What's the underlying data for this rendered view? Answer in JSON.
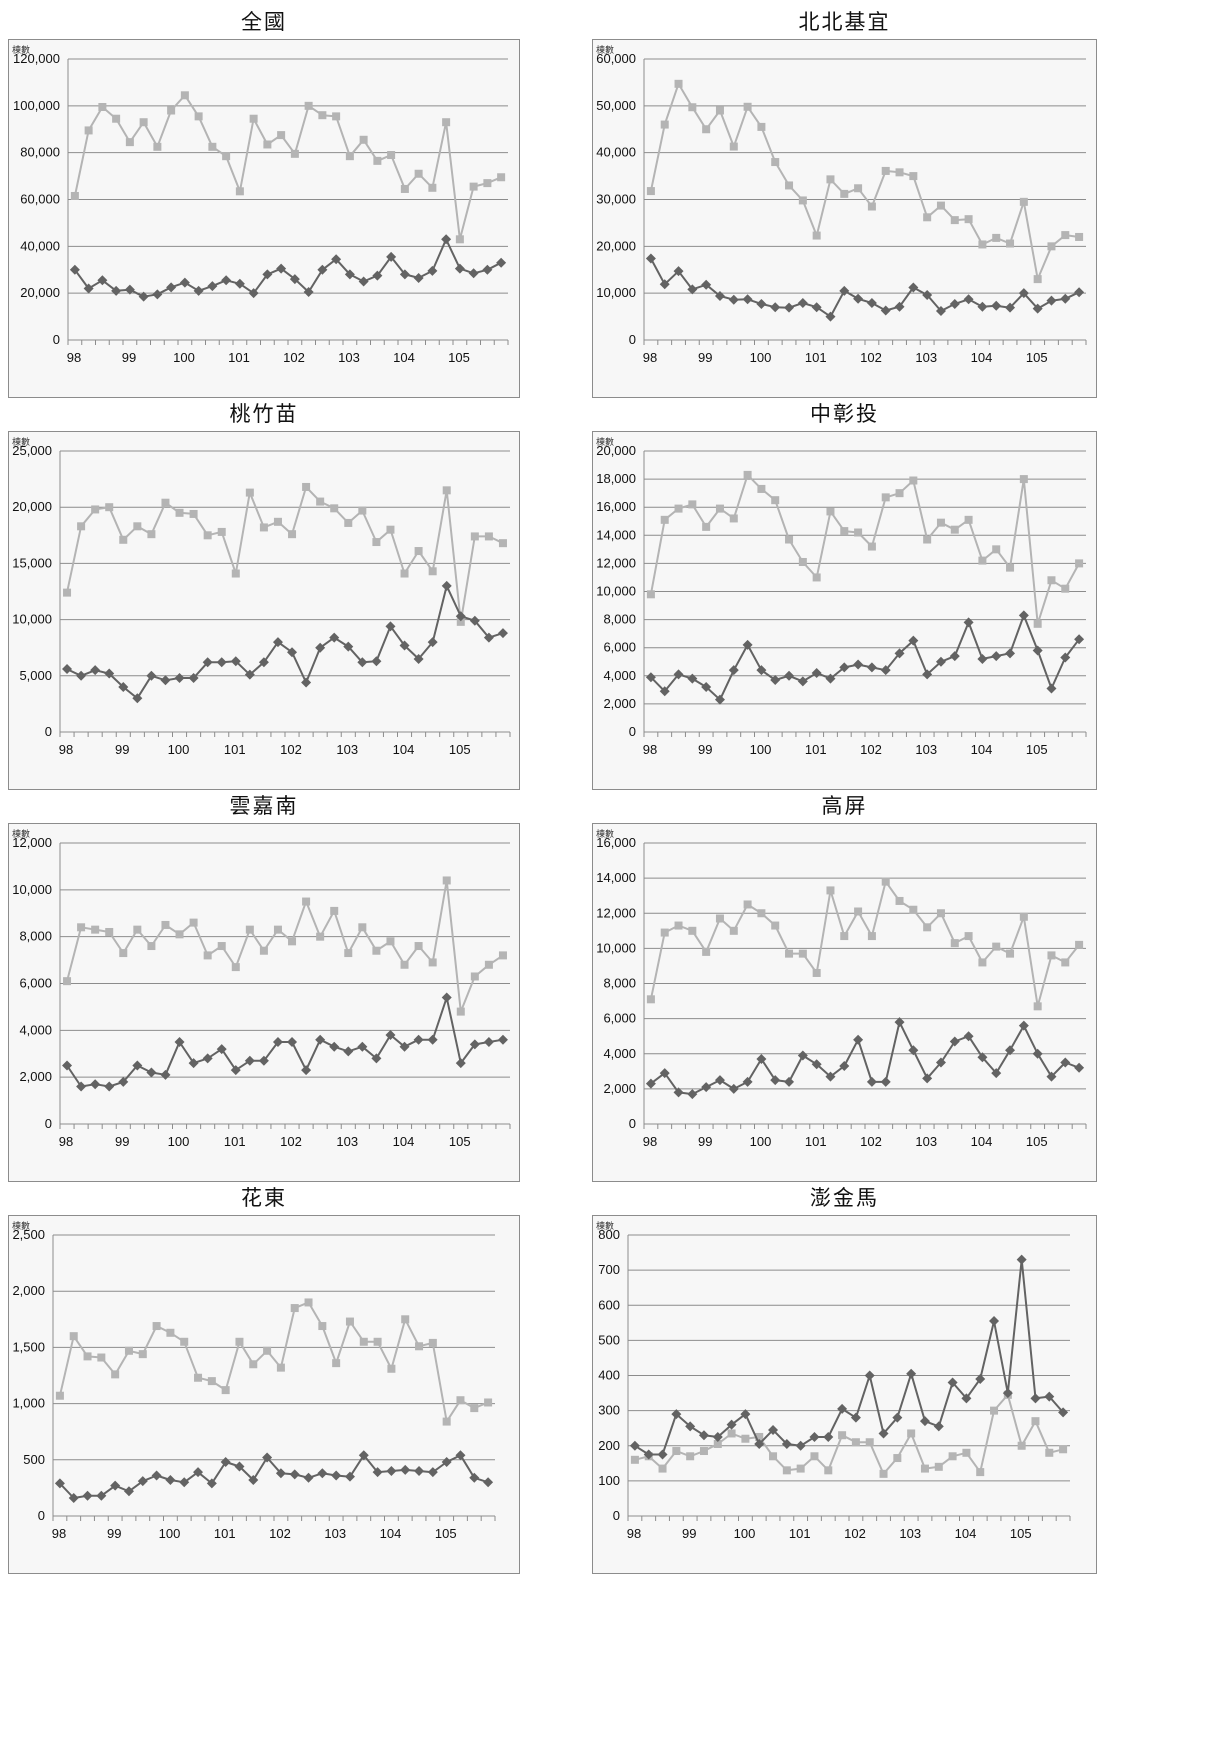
{
  "chart_data": [
    {
      "type": "line",
      "title": "全國",
      "ylabel": "棟數",
      "ylim": [
        0,
        120000
      ],
      "yticks": [
        0,
        20000,
        40000,
        60000,
        80000,
        100000,
        120000
      ],
      "ytick_labels": [
        "0",
        "20,000",
        "40,000",
        "60,000",
        "80,000",
        "100,000",
        "120,000"
      ],
      "x_labels": [
        "98",
        "99",
        "100",
        "101",
        "102",
        "103",
        "104",
        "105"
      ],
      "series": [
        {
          "style": "light-square",
          "values": [
            61500,
            89500,
            99500,
            94500,
            84500,
            93000,
            82500,
            98000,
            104500,
            95500,
            82500,
            78500,
            63500,
            94500,
            83500,
            87500,
            79500,
            100000,
            96000,
            95500,
            78500,
            85500,
            76500,
            79000,
            64500,
            71000,
            65000,
            93000,
            43000,
            65500,
            67000,
            69500
          ]
        },
        {
          "style": "dark-diamond",
          "values": [
            30000,
            22000,
            25500,
            21000,
            21500,
            18500,
            19500,
            22500,
            24500,
            21000,
            23000,
            25500,
            24000,
            20000,
            28000,
            30500,
            26000,
            20500,
            30000,
            34500,
            28000,
            25000,
            27500,
            35500,
            28000,
            26500,
            29500,
            43000,
            30500,
            28500,
            30000,
            33000
          ]
        }
      ]
    },
    {
      "type": "line",
      "title": "北北基宜",
      "ylabel": "棟數",
      "ylim": [
        0,
        60000
      ],
      "yticks": [
        0,
        10000,
        20000,
        30000,
        40000,
        50000,
        60000
      ],
      "ytick_labels": [
        "0",
        "10,000",
        "20,000",
        "30,000",
        "40,000",
        "50,000",
        "60,000"
      ],
      "x_labels": [
        "98",
        "99",
        "100",
        "101",
        "102",
        "103",
        "104",
        "105"
      ],
      "series": [
        {
          "style": "light-square",
          "values": [
            31800,
            46000,
            54700,
            49700,
            45000,
            49000,
            41300,
            49800,
            45500,
            38000,
            33000,
            29800,
            22300,
            34300,
            31200,
            32400,
            28500,
            36100,
            35800,
            35000,
            26200,
            28700,
            25600,
            25800,
            20400,
            21800,
            20600,
            29500,
            13000,
            20000,
            22400,
            22000
          ]
        },
        {
          "style": "dark-diamond",
          "values": [
            17400,
            11900,
            14700,
            10800,
            11800,
            9400,
            8600,
            8700,
            7700,
            7000,
            6900,
            7900,
            7000,
            5000,
            10500,
            8800,
            7900,
            6300,
            7100,
            11200,
            9600,
            6200,
            7700,
            8700,
            7100,
            7300,
            6900,
            10000,
            6700,
            8400,
            8800,
            10200
          ]
        }
      ]
    },
    {
      "type": "line",
      "title": "桃竹苗",
      "ylabel": "棟數",
      "ylim": [
        0,
        25000
      ],
      "yticks": [
        0,
        5000,
        10000,
        15000,
        20000,
        25000
      ],
      "ytick_labels": [
        "0",
        "5,000",
        "10,000",
        "15,000",
        "20,000",
        "25,000"
      ],
      "x_labels": [
        "98",
        "99",
        "100",
        "101",
        "102",
        "103",
        "104",
        "105"
      ],
      "series": [
        {
          "style": "light-square",
          "values": [
            12400,
            18300,
            19800,
            20000,
            17100,
            18300,
            17600,
            20400,
            19500,
            19400,
            17500,
            17800,
            14100,
            21300,
            18200,
            18700,
            17600,
            21800,
            20500,
            19900,
            18600,
            19700,
            16900,
            18000,
            14100,
            16100,
            14300,
            21500,
            9800,
            17400,
            17400,
            16800
          ]
        },
        {
          "style": "dark-diamond",
          "values": [
            5600,
            5000,
            5500,
            5200,
            4000,
            3000,
            5000,
            4600,
            4800,
            4800,
            6200,
            6200,
            6300,
            5100,
            6200,
            8000,
            7100,
            4400,
            7500,
            8400,
            7600,
            6200,
            6300,
            9400,
            7700,
            6500,
            8000,
            13000,
            10300,
            9900,
            8400,
            8800
          ]
        }
      ]
    },
    {
      "type": "line",
      "title": "中彰投",
      "ylabel": "棟數",
      "ylim": [
        0,
        20000
      ],
      "yticks": [
        0,
        2000,
        4000,
        6000,
        8000,
        10000,
        12000,
        14000,
        16000,
        18000,
        20000
      ],
      "ytick_labels": [
        "0",
        "2,000",
        "4,000",
        "6,000",
        "8,000",
        "10,000",
        "12,000",
        "14,000",
        "16,000",
        "18,000",
        "20,000"
      ],
      "x_labels": [
        "98",
        "99",
        "100",
        "101",
        "102",
        "103",
        "104",
        "105"
      ],
      "series": [
        {
          "style": "light-square",
          "values": [
            9800,
            15100,
            15900,
            16200,
            14600,
            15900,
            15200,
            18300,
            17300,
            16500,
            13700,
            12100,
            11000,
            15700,
            14300,
            14200,
            13200,
            16700,
            17000,
            17900,
            13700,
            14900,
            14400,
            15100,
            12200,
            13000,
            11700,
            18000,
            7700,
            10800,
            10200,
            12000
          ]
        },
        {
          "style": "dark-diamond",
          "values": [
            3900,
            2900,
            4100,
            3800,
            3200,
            2300,
            4400,
            6200,
            4400,
            3700,
            4000,
            3600,
            4200,
            3800,
            4600,
            4800,
            4600,
            4400,
            5600,
            6500,
            4100,
            5000,
            5400,
            7800,
            5200,
            5400,
            5600,
            8300,
            5800,
            3100,
            5300,
            6600
          ]
        }
      ]
    },
    {
      "type": "line",
      "title": "雲嘉南",
      "ylabel": "棟數",
      "ylim": [
        0,
        12000
      ],
      "yticks": [
        0,
        2000,
        4000,
        6000,
        8000,
        10000,
        12000
      ],
      "ytick_labels": [
        "0",
        "2,000",
        "4,000",
        "6,000",
        "8,000",
        "10,000",
        "12,000"
      ],
      "x_labels": [
        "98",
        "99",
        "100",
        "101",
        "102",
        "103",
        "104",
        "105"
      ],
      "series": [
        {
          "style": "light-square",
          "values": [
            6100,
            8400,
            8300,
            8200,
            7300,
            8300,
            7600,
            8500,
            8100,
            8600,
            7200,
            7600,
            6700,
            8300,
            7400,
            8300,
            7800,
            9500,
            8000,
            9100,
            7300,
            8400,
            7400,
            7800,
            6800,
            7600,
            6900,
            10400,
            4800,
            6300,
            6800,
            7200
          ]
        },
        {
          "style": "dark-diamond",
          "values": [
            2500,
            1600,
            1700,
            1600,
            1800,
            2500,
            2200,
            2100,
            3500,
            2600,
            2800,
            3200,
            2300,
            2700,
            2700,
            3500,
            3500,
            2300,
            3600,
            3300,
            3100,
            3300,
            2800,
            3800,
            3300,
            3600,
            3600,
            5400,
            2600,
            3400,
            3500,
            3600
          ]
        }
      ]
    },
    {
      "type": "line",
      "title": "高屏",
      "ylabel": "棟數",
      "ylim": [
        0,
        16000
      ],
      "yticks": [
        0,
        2000,
        4000,
        6000,
        8000,
        10000,
        12000,
        14000,
        16000
      ],
      "ytick_labels": [
        "0",
        "2,000",
        "4,000",
        "6,000",
        "8,000",
        "10,000",
        "12,000",
        "14,000",
        "16,000"
      ],
      "x_labels": [
        "98",
        "99",
        "100",
        "101",
        "102",
        "103",
        "104",
        "105"
      ],
      "series": [
        {
          "style": "light-square",
          "values": [
            7100,
            10900,
            11300,
            11000,
            9800,
            11700,
            11000,
            12500,
            12000,
            11300,
            9700,
            9700,
            8600,
            13300,
            10700,
            12100,
            10700,
            13800,
            12700,
            12200,
            11200,
            12000,
            10300,
            10700,
            9200,
            10100,
            9700,
            11800,
            6700,
            9600,
            9200,
            10200
          ]
        },
        {
          "style": "dark-diamond",
          "values": [
            2300,
            2900,
            1800,
            1700,
            2100,
            2500,
            2000,
            2400,
            3700,
            2500,
            2400,
            3900,
            3400,
            2700,
            3300,
            4800,
            2400,
            2400,
            5800,
            4200,
            2600,
            3500,
            4700,
            5000,
            3800,
            2900,
            4200,
            5600,
            4000,
            2700,
            3500,
            3200
          ]
        }
      ]
    },
    {
      "type": "line",
      "title": "花東",
      "ylabel": "棟數",
      "ylim": [
        0,
        2500
      ],
      "yticks": [
        0,
        500,
        1000,
        1500,
        2000,
        2500
      ],
      "ytick_labels": [
        "0",
        "500",
        "1,000",
        "1,500",
        "2,000",
        "2,500"
      ],
      "x_labels": [
        "98",
        "99",
        "100",
        "101",
        "102",
        "103",
        "104",
        "105"
      ],
      "series": [
        {
          "style": "light-square",
          "values": [
            1070,
            1600,
            1420,
            1410,
            1260,
            1470,
            1440,
            1690,
            1630,
            1550,
            1230,
            1200,
            1120,
            1550,
            1350,
            1470,
            1320,
            1850,
            1900,
            1690,
            1360,
            1730,
            1550,
            1550,
            1310,
            1750,
            1510,
            1540,
            840,
            1030,
            960,
            1010
          ]
        },
        {
          "style": "dark-diamond",
          "values": [
            290,
            160,
            180,
            180,
            270,
            220,
            310,
            360,
            320,
            300,
            390,
            290,
            480,
            440,
            320,
            520,
            380,
            370,
            340,
            380,
            360,
            350,
            540,
            390,
            400,
            410,
            400,
            390,
            480,
            540,
            340,
            300
          ]
        }
      ]
    },
    {
      "type": "line",
      "title": "澎金馬",
      "ylabel": "棟數",
      "ylim": [
        0,
        800
      ],
      "yticks": [
        0,
        100,
        200,
        300,
        400,
        500,
        600,
        700,
        800
      ],
      "ytick_labels": [
        "0",
        "100",
        "200",
        "300",
        "400",
        "500",
        "600",
        "700",
        "800"
      ],
      "x_labels": [
        "98",
        "99",
        "100",
        "101",
        "102",
        "103",
        "104",
        "105"
      ],
      "series": [
        {
          "style": "light-square",
          "values": [
            160,
            170,
            135,
            185,
            170,
            185,
            205,
            235,
            220,
            225,
            170,
            130,
            135,
            170,
            130,
            230,
            210,
            210,
            120,
            165,
            235,
            135,
            140,
            170,
            180,
            125,
            300,
            345,
            200,
            270,
            180,
            190
          ]
        },
        {
          "style": "dark-diamond",
          "values": [
            200,
            175,
            175,
            290,
            255,
            230,
            225,
            260,
            290,
            205,
            245,
            205,
            200,
            225,
            225,
            305,
            280,
            400,
            235,
            280,
            405,
            270,
            255,
            380,
            335,
            390,
            555,
            350,
            730,
            335,
            340,
            295
          ]
        }
      ]
    }
  ],
  "colors": {
    "dark_series": "#636363",
    "light_series": "#b4b4b4",
    "grid": "#8c8c8c",
    "plot_background": "#f7f7f7"
  }
}
